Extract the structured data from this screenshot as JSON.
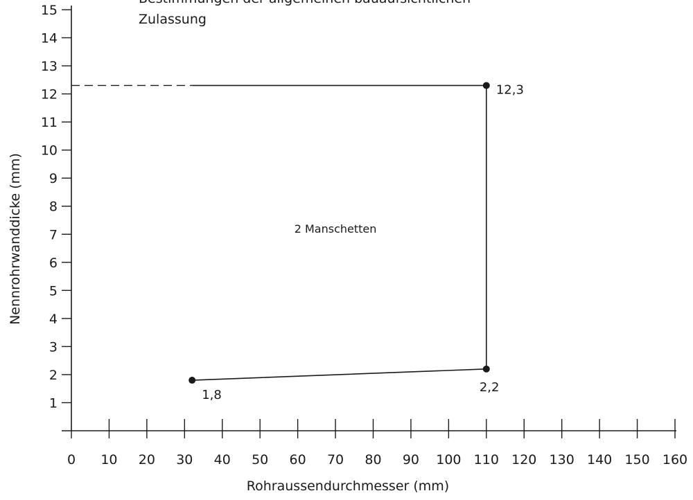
{
  "chart_data": {
    "type": "line",
    "title_lines": [
      "Bestimmungen der allgemeinen bauaufsichtlichen",
      "Zulassung"
    ],
    "xlabel": "Rohraussendurchmesser (mm)",
    "ylabel": "Nennrohrwanddicke (mm)",
    "xlim": [
      0,
      160
    ],
    "ylim": [
      0,
      15
    ],
    "x_ticks": [
      0,
      10,
      20,
      30,
      40,
      50,
      60,
      70,
      80,
      90,
      100,
      110,
      120,
      130,
      140,
      150,
      160
    ],
    "x_tick_labels": [
      "0",
      "10",
      "20",
      "30",
      "40",
      "50",
      "60",
      "70",
      "80",
      "90",
      "100",
      "110",
      "120",
      "130",
      "140",
      "150",
      "160"
    ],
    "y_ticks": [
      1,
      2,
      3,
      4,
      5,
      6,
      7,
      8,
      9,
      10,
      11,
      12,
      13,
      14,
      15
    ],
    "y_tick_labels": [
      "1",
      "2",
      "3",
      "4",
      "5",
      "6",
      "7",
      "8",
      "9",
      "10",
      "11",
      "12",
      "13",
      "14",
      "15"
    ],
    "series": [
      {
        "points": [
          {
            "x": 32,
            "y": 1.8,
            "label": "1,8"
          },
          {
            "x": 110,
            "y": 2.2,
            "label": "2,2"
          },
          {
            "x": 110,
            "y": 12.3,
            "label": "12,3"
          }
        ]
      }
    ],
    "boundary_top": {
      "from_x": 0,
      "to_x": 110,
      "y": 12.3
    },
    "reference_line": {
      "style": "dashed",
      "from_x": 0,
      "to_x": 32,
      "y": 12.3
    },
    "region_label": {
      "text": "2 Manschetten",
      "x": 70,
      "y": 7.2
    },
    "grid": false
  }
}
